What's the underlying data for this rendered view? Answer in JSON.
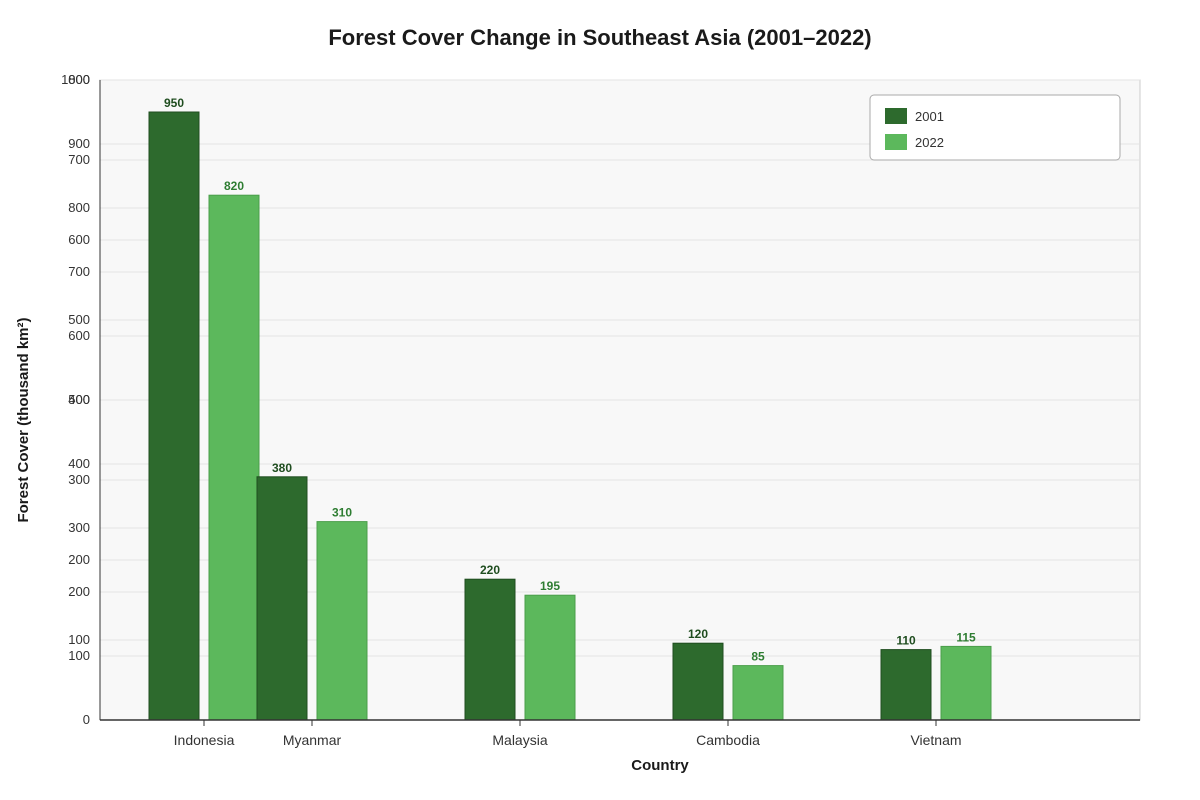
{
  "chart_data": {
    "type": "bar",
    "title": "Forest Cover Change in Southeast Asia (2001–2022)",
    "xlabel": "Country",
    "ylabel": "Forest Cover (thousand km²)",
    "categories": [
      "Indonesia",
      "Myanmar",
      "Malaysia",
      "Cambodia",
      "Vietnam"
    ],
    "series": [
      {
        "name": "2001",
        "color": "#2d6a2d",
        "label_color": "#1f4d1f",
        "values": [
          950,
          380,
          220,
          120,
          110
        ]
      },
      {
        "name": "2022",
        "color": "#5cb85c",
        "label_color": "#2e7d32",
        "values": [
          820,
          310,
          195,
          85,
          115
        ]
      }
    ],
    "ylim": [
      0,
      1000
    ],
    "y_ticks": [
      0,
      100,
      200,
      300,
      400,
      500,
      600,
      700,
      800,
      900,
      1000
    ],
    "overlapping_tick_labels": [
      "0",
      "100",
      "100",
      "200",
      "200",
      "300",
      "300",
      "400",
      "400",
      "500",
      "500",
      "600",
      "600",
      "700",
      "700",
      "800",
      "800",
      "900",
      "900",
      "1000",
      "1000"
    ],
    "grid": true,
    "legend_position": "top-right",
    "colors": {
      "plot_background": "#f8f8f8",
      "grid": "#e3e3e3",
      "axis": "#333333"
    }
  }
}
